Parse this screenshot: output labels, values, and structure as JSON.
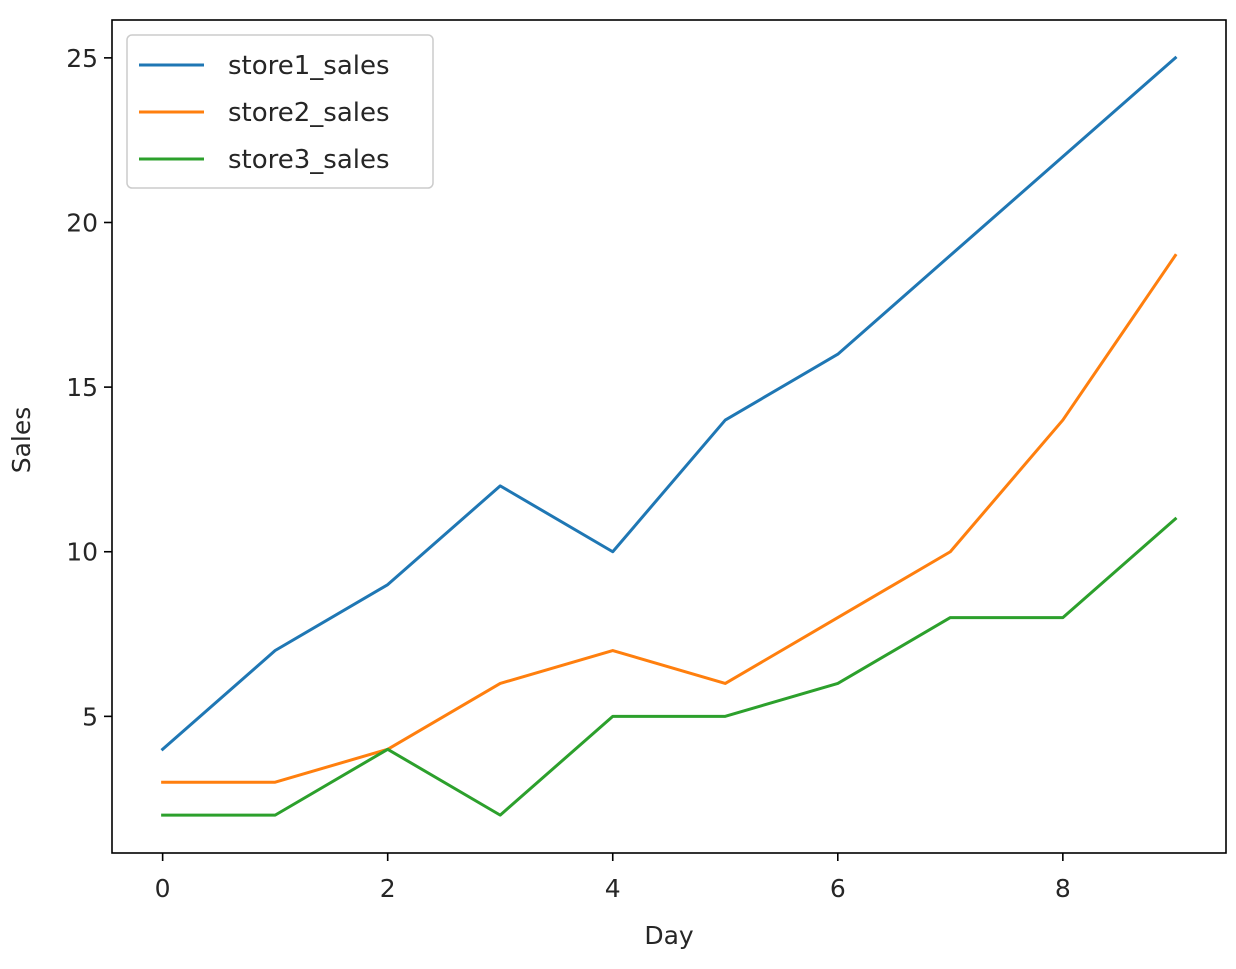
{
  "chart_data": {
    "type": "line",
    "title": "",
    "xlabel": "Day",
    "ylabel": "Sales",
    "x": [
      0,
      1,
      2,
      3,
      4,
      5,
      6,
      7,
      8,
      9
    ],
    "xlim": [
      -0.45,
      9.45
    ],
    "ylim": [
      0.85,
      26.15
    ],
    "xticks": [
      0,
      2,
      4,
      6,
      8
    ],
    "yticks": [
      5,
      10,
      15,
      20,
      25
    ],
    "grid": false,
    "legend_position": "top-left",
    "series": [
      {
        "name": "store1_sales",
        "color": "#1f77b4",
        "values": [
          4,
          7,
          9,
          12,
          10,
          14,
          16,
          19,
          22,
          25
        ]
      },
      {
        "name": "store2_sales",
        "color": "#ff7f0e",
        "values": [
          3,
          3,
          4,
          6,
          7,
          6,
          8,
          10,
          14,
          19
        ]
      },
      {
        "name": "store3_sales",
        "color": "#2ca02c",
        "values": [
          2,
          2,
          4,
          2,
          5,
          5,
          6,
          8,
          8,
          11
        ]
      }
    ]
  }
}
